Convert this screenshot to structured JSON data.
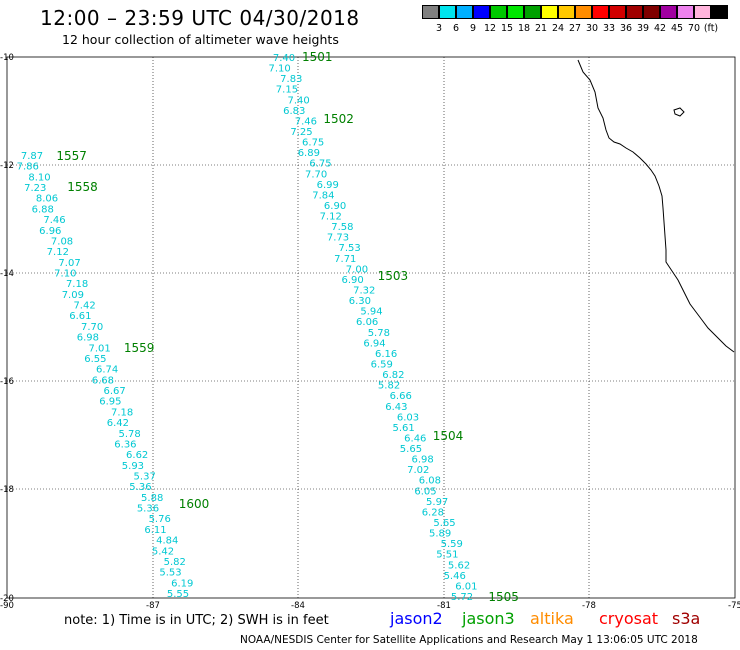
{
  "title": "12:00 – 23:59 UTC 04/30/2018",
  "subtitle": "12 hour collection of altimeter wave heights",
  "scale": {
    "colors": [
      "#808080",
      "#00e5ee",
      "#00b0ff",
      "#0000ff",
      "#00c800",
      "#00e600",
      "#00a000",
      "#ffff00",
      "#ffc800",
      "#ff8c00",
      "#ff0000",
      "#d20000",
      "#a00000",
      "#7f0000",
      "#a000a0",
      "#ee82ee",
      "#ffb4dc",
      "#000000"
    ],
    "labels": [
      "3",
      "6",
      "9",
      "12",
      "15",
      "18",
      "21",
      "24",
      "27",
      "30",
      "33",
      "36",
      "39",
      "42",
      "45",
      "70",
      "(ft)"
    ]
  },
  "axes": {
    "lat_labels": [
      "-10",
      "-12",
      "-14",
      "-16",
      "-18",
      "-20"
    ],
    "lon_labels": [
      "-90",
      "-87",
      "-84",
      "-81",
      "-78",
      "-75"
    ]
  },
  "track_colors": {
    "swh": "#00c8d2",
    "time": "#008000"
  },
  "tracks": [
    {
      "name": "east-pass",
      "times": [
        "1501",
        "1502",
        "1503",
        "1504",
        "1505"
      ],
      "values": [
        "7.40",
        "7.10",
        "7.83",
        "7.15",
        "7.40",
        "6.83",
        "7.46",
        "7.25",
        "6.75",
        "6.89",
        "6.75",
        "7.70",
        "6.99",
        "7.84",
        "6.90",
        "7.12",
        "7.58",
        "7.73",
        "7.53",
        "7.71",
        "7.00",
        "6.90",
        "7.32",
        "6.30",
        "5.94",
        "6.06",
        "5.78",
        "6.94",
        "6.16",
        "6.59",
        "6.82",
        "5.82",
        "6.66",
        "6.43",
        "6.03",
        "5.61",
        "6.46",
        "5.65",
        "6.98",
        "7.02",
        "6.08",
        "6.05",
        "5.97",
        "6.28",
        "5.65",
        "5.89",
        "5.59",
        "5.51",
        "5.62",
        "5.46",
        "6.01",
        "5.72"
      ]
    },
    {
      "name": "west-pass",
      "times": [
        "1557",
        "1558",
        "1559",
        "1600"
      ],
      "values": [
        "7.87",
        "7.86",
        "8.10",
        "7.23",
        "8.06",
        "6.88",
        "7.46",
        "6.96",
        "7.08",
        "7.12",
        "7.07",
        "7.10",
        "7.18",
        "7.09",
        "7.42",
        "6.61",
        "7.70",
        "6.98",
        "7.01",
        "6.55",
        "6.74",
        "6.68",
        "6.67",
        "6.95",
        "7.18",
        "6.42",
        "5.78",
        "6.36",
        "6.62",
        "5.93",
        "5.37",
        "5.36",
        "5.88",
        "5.36",
        "5.76",
        "6.11",
        "4.84",
        "5.42",
        "5.82",
        "5.53",
        "6.19",
        "5.55"
      ]
    }
  ],
  "note": "note: 1) Time is in UTC; 2) SWH is in feet",
  "legend": [
    {
      "name": "jason2",
      "color": "#0000ff"
    },
    {
      "name": "jason3",
      "color": "#00a000"
    },
    {
      "name": "altika",
      "color": "#ff8c00"
    },
    {
      "name": "cryosat",
      "color": "#ff0000"
    },
    {
      "name": "s3a",
      "color": "#a00000"
    }
  ],
  "credit": "NOAA/NESDIS Center for Satellite Applications and Research   May  1 13:06:05 UTC 2018"
}
